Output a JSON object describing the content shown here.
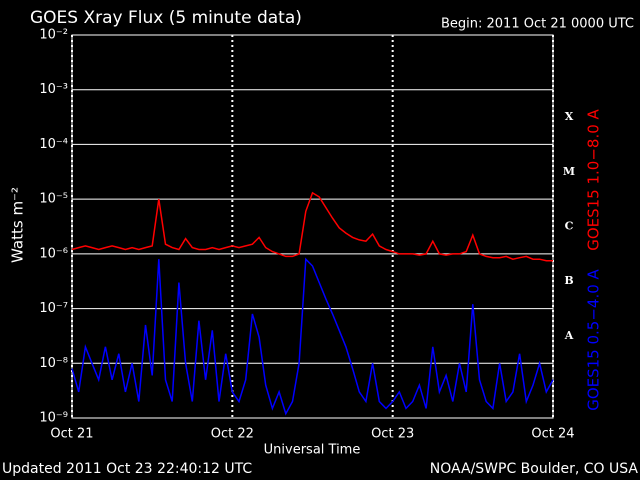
{
  "chart_data": {
    "type": "line",
    "title": "GOES Xray Flux (5 minute data)",
    "subtitle": "Begin:  2011 Oct 21 0000 UTC",
    "y_label": "Watts m⁻²",
    "x_label": "Universal Time",
    "footer_left": "Updated 2011 Oct 23 22:40:12 UTC",
    "footer_right": "NOAA/SWPC Boulder, CO USA",
    "flare_classes": [
      "X",
      "M",
      "C",
      "B",
      "A"
    ],
    "log_scale": true,
    "grid": true,
    "xlim": [
      0,
      72
    ],
    "xticks": [
      {
        "value": 0,
        "label": "Oct 21"
      },
      {
        "value": 24,
        "label": "Oct 22"
      },
      {
        "value": 48,
        "label": "Oct 23"
      },
      {
        "value": 72,
        "label": "Oct 24"
      }
    ],
    "ylim": [
      1e-09,
      0.01
    ],
    "yticks": [
      {
        "value": 1e-09,
        "label": "10⁻⁹"
      },
      {
        "value": 1e-08,
        "label": "10⁻⁸"
      },
      {
        "value": 1e-07,
        "label": "10⁻⁷"
      },
      {
        "value": 1e-06,
        "label": "10⁻⁶"
      },
      {
        "value": 1e-05,
        "label": "10⁻⁵"
      },
      {
        "value": 0.0001,
        "label": "10⁻⁴"
      },
      {
        "value": 0.001,
        "label": "10⁻³"
      },
      {
        "value": 0.01,
        "label": "10⁻²"
      }
    ],
    "x": [
      0,
      1,
      2,
      3,
      4,
      5,
      6,
      7,
      8,
      9,
      10,
      11,
      12,
      13,
      14,
      15,
      16,
      17,
      18,
      19,
      20,
      21,
      22,
      23,
      24,
      25,
      26,
      27,
      28,
      29,
      30,
      31,
      32,
      33,
      34,
      35,
      36,
      37,
      38,
      39,
      40,
      41,
      42,
      43,
      44,
      45,
      46,
      47,
      48,
      49,
      50,
      51,
      52,
      53,
      54,
      55,
      56,
      57,
      58,
      59,
      60,
      61,
      62,
      63,
      64,
      65,
      66,
      67,
      68,
      69,
      70,
      71,
      72
    ],
    "series": [
      {
        "name": "GOES15 1.0−8.0 A",
        "color": "#ff0000",
        "values": [
          1.2e-06,
          1.3e-06,
          1.4e-06,
          1.3e-06,
          1.2e-06,
          1.3e-06,
          1.4e-06,
          1.3e-06,
          1.2e-06,
          1.3e-06,
          1.2e-06,
          1.3e-06,
          1.4e-06,
          1e-05,
          1.5e-06,
          1.3e-06,
          1.2e-06,
          1.9e-06,
          1.3e-06,
          1.2e-06,
          1.2e-06,
          1.3e-06,
          1.2e-06,
          1.3e-06,
          1.4e-06,
          1.3e-06,
          1.4e-06,
          1.5e-06,
          2e-06,
          1.3e-06,
          1.1e-06,
          1e-06,
          9e-07,
          9e-07,
          1e-06,
          6e-06,
          1.3e-05,
          1.1e-05,
          7e-06,
          4.5e-06,
          3e-06,
          2.4e-06,
          2e-06,
          1.8e-06,
          1.7e-06,
          2.3e-06,
          1.4e-06,
          1.2e-06,
          1.1e-06,
          1e-06,
          1e-06,
          1e-06,
          9.5e-07,
          1e-06,
          1.7e-06,
          1e-06,
          9.5e-07,
          1e-06,
          1e-06,
          1.1e-06,
          2.2e-06,
          1e-06,
          9e-07,
          8.5e-07,
          8.5e-07,
          9e-07,
          8e-07,
          8.5e-07,
          9e-07,
          8e-07,
          8e-07,
          7.5e-07,
          7.5e-07
        ]
      },
      {
        "name": "GOES15 0.5−4.0 A",
        "color": "#0000ff",
        "values": [
          8e-09,
          3e-09,
          2e-08,
          1e-08,
          5e-09,
          2e-08,
          5e-09,
          1.5e-08,
          3e-09,
          1e-08,
          2e-09,
          5e-08,
          6e-09,
          8e-07,
          5e-09,
          2e-09,
          3e-07,
          1e-08,
          2e-09,
          6e-08,
          5e-09,
          4e-08,
          2e-09,
          1.5e-08,
          3e-09,
          2e-09,
          5e-09,
          8e-08,
          3e-08,
          4e-09,
          1.5e-09,
          3e-09,
          1.2e-09,
          2e-09,
          1e-08,
          8e-07,
          6e-07,
          3e-07,
          1.5e-07,
          8e-08,
          4e-08,
          2e-08,
          8e-09,
          3e-09,
          2e-09,
          1e-08,
          2e-09,
          1.5e-09,
          2e-09,
          3e-09,
          1.5e-09,
          2e-09,
          4e-09,
          1.5e-09,
          2e-08,
          3e-09,
          6e-09,
          2e-09,
          1e-08,
          3e-09,
          1.2e-07,
          5e-09,
          2e-09,
          1.5e-09,
          1e-08,
          2e-09,
          3e-09,
          1.5e-08,
          2e-09,
          4e-09,
          1e-08,
          3e-09,
          5e-09
        ]
      }
    ]
  }
}
